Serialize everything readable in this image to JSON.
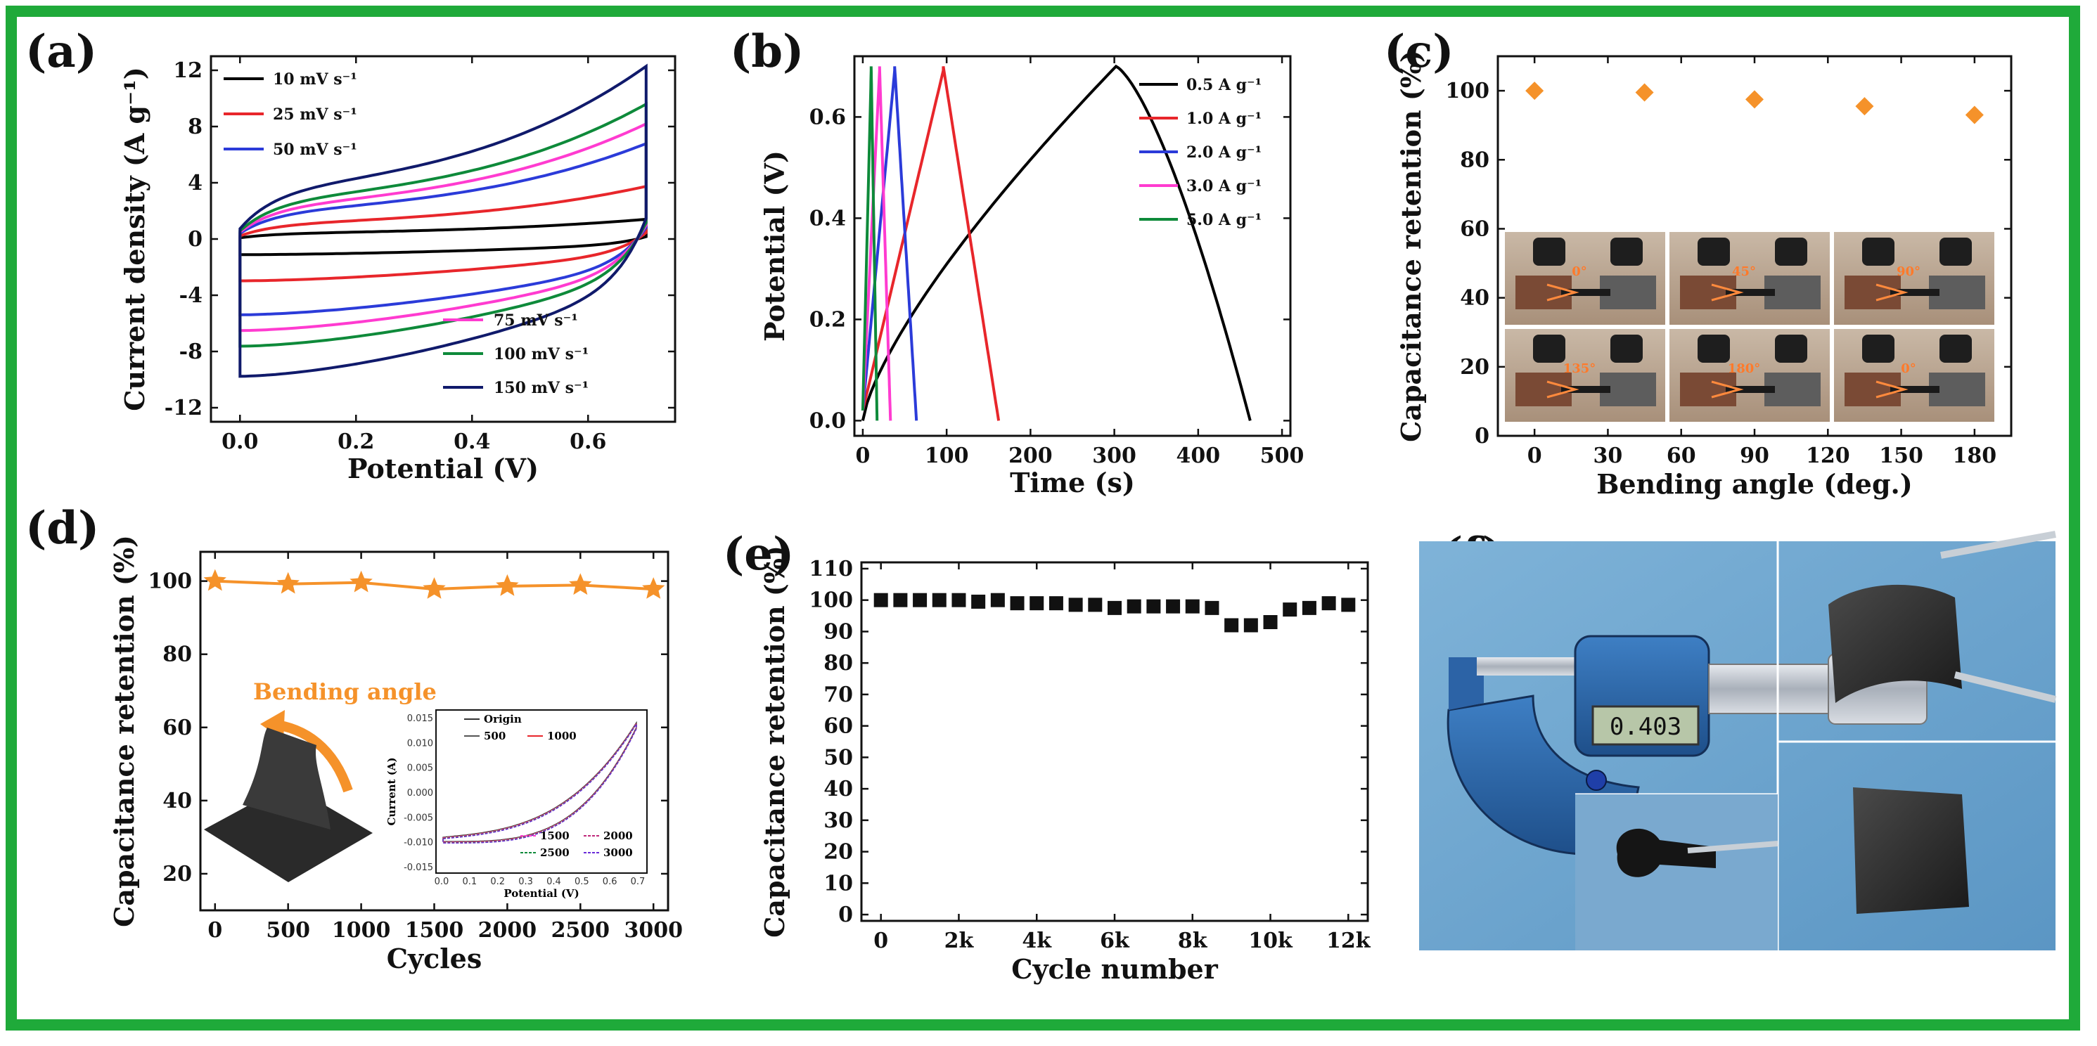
{
  "panels": {
    "a": "(a)",
    "b": "(b)",
    "c": "(c)",
    "d": "(d)",
    "e": "(e)",
    "f": "(f)"
  },
  "colors": {
    "frame": "#1faa3a",
    "orange": "#f5922a",
    "black": "#111111"
  },
  "chart_data": [
    {
      "id": "a",
      "type": "line",
      "xlabel": "Potential (V)",
      "ylabel": "Current density (A g⁻¹)",
      "xlim": [
        -0.05,
        0.75
      ],
      "ylim": [
        -13,
        13
      ],
      "xticks": [
        "0.0",
        "0.2",
        "0.4",
        "0.6"
      ],
      "xtick_values": [
        0,
        0.2,
        0.4,
        0.6
      ],
      "yticks": [
        "-12",
        "-8",
        "-4",
        "0",
        "4",
        "8",
        "12"
      ],
      "ytick_values": [
        -12,
        -8,
        -4,
        0,
        4,
        8,
        12
      ],
      "series": [
        {
          "name": "10 mV s⁻¹",
          "color": "#000000",
          "amp": 1.2,
          "legend": "upper"
        },
        {
          "name": "25 mV s⁻¹",
          "color": "#e8262b",
          "amp": 3.2,
          "legend": "upper"
        },
        {
          "name": "50 mV s⁻¹",
          "color": "#2b3bd9",
          "amp": 5.8,
          "legend": "upper"
        },
        {
          "name": "75 mV s⁻¹",
          "color": "#ff3bd0",
          "amp": 7.0,
          "legend": "lower"
        },
        {
          "name": "100 mV s⁻¹",
          "color": "#0e8a3a",
          "amp": 8.2,
          "legend": "lower"
        },
        {
          "name": "150 mV s⁻¹",
          "color": "#101a6b",
          "amp": 10.5,
          "legend": "lower"
        }
      ]
    },
    {
      "id": "b",
      "type": "line",
      "xlabel": "Time (s)",
      "ylabel": "Potential (V)",
      "xlim": [
        -10,
        510
      ],
      "ylim": [
        -0.03,
        0.72
      ],
      "xticks": [
        "0",
        "100",
        "200",
        "300",
        "400",
        "500"
      ],
      "xtick_values": [
        0,
        100,
        200,
        300,
        400,
        500
      ],
      "yticks": [
        "0.0",
        "0.2",
        "0.4",
        "0.6"
      ],
      "ytick_values": [
        0,
        0.2,
        0.4,
        0.6
      ],
      "series": [
        {
          "name": "0.5 A g⁻¹",
          "color": "#000000",
          "charge_end": 302,
          "discharge_end": 462
        },
        {
          "name": "1.0 A g⁻¹",
          "color": "#e8262b",
          "charge_end": 96,
          "discharge_end": 162
        },
        {
          "name": "2.0 A g⁻¹",
          "color": "#2b3bd9",
          "charge_end": 38,
          "discharge_end": 64
        },
        {
          "name": "3.0 A g⁻¹",
          "color": "#ff3bd0",
          "charge_end": 20,
          "discharge_end": 33
        },
        {
          "name": "5.0 A g⁻¹",
          "color": "#0e8a3a",
          "charge_end": 10,
          "discharge_end": 17
        }
      ]
    },
    {
      "id": "c",
      "type": "scatter",
      "xlabel": "Bending angle (deg.)",
      "ylabel": "Capacitance retention (%)",
      "xlim": [
        -15,
        195
      ],
      "ylim": [
        0,
        110
      ],
      "xticks": [
        "0",
        "30",
        "60",
        "90",
        "120",
        "150",
        "180"
      ],
      "xtick_values": [
        0,
        30,
        60,
        90,
        120,
        150,
        180
      ],
      "yticks": [
        "0",
        "20",
        "40",
        "60",
        "80",
        "100"
      ],
      "ytick_values": [
        0,
        20,
        40,
        60,
        80,
        100
      ],
      "x": [
        0,
        45,
        90,
        135,
        180
      ],
      "y": [
        100,
        99.5,
        97.5,
        95.5,
        93
      ],
      "inset_labels": [
        "0°",
        "45°",
        "90°",
        "135°",
        "180°",
        "0°"
      ]
    },
    {
      "id": "d",
      "type": "line",
      "xlabel": "Cycles",
      "ylabel": "Capacitance retention (%)",
      "xlim": [
        -100,
        3100
      ],
      "ylim": [
        10,
        108
      ],
      "xticks": [
        "0",
        "500",
        "1000",
        "1500",
        "2000",
        "2500",
        "3000"
      ],
      "xtick_values": [
        0,
        500,
        1000,
        1500,
        2000,
        2500,
        3000
      ],
      "yticks": [
        "20",
        "40",
        "60",
        "80",
        "100"
      ],
      "ytick_values": [
        20,
        40,
        60,
        80,
        100
      ],
      "x": [
        0,
        500,
        1000,
        1500,
        2000,
        2500,
        3000
      ],
      "y": [
        100,
        99.2,
        99.6,
        97.8,
        98.6,
        98.9,
        97.8
      ],
      "annotation": "Bending angle",
      "inset": {
        "xlabel": "Potential (V)",
        "ylabel": "Current (A)",
        "xticks": [
          "0.0",
          "0.1",
          "0.2",
          "0.3",
          "0.4",
          "0.5",
          "0.6",
          "0.7"
        ],
        "yticks": [
          "0.015",
          "0.010",
          "0.005",
          "0.000",
          "-0.005",
          "-0.010",
          "-0.015"
        ],
        "legend_top": [
          "Origin",
          "500",
          "1000"
        ],
        "legend_bottom": [
          "1500",
          "2000",
          "2500",
          "3000"
        ]
      }
    },
    {
      "id": "e",
      "type": "scatter",
      "xlabel": "Cycle number",
      "ylabel": "Capacitance retention (%)",
      "xlim": [
        -500,
        12500
      ],
      "ylim": [
        -2,
        112
      ],
      "xticks": [
        "0",
        "2k",
        "4k",
        "6k",
        "8k",
        "10k",
        "12k"
      ],
      "xtick_values": [
        0,
        2000,
        4000,
        6000,
        8000,
        10000,
        12000
      ],
      "yticks": [
        "0",
        "10",
        "20",
        "30",
        "40",
        "50",
        "60",
        "70",
        "80",
        "90",
        "100",
        "110"
      ],
      "ytick_values": [
        0,
        10,
        20,
        30,
        40,
        50,
        60,
        70,
        80,
        90,
        100,
        110
      ],
      "x": [
        0,
        500,
        1000,
        1500,
        2000,
        2500,
        3000,
        3500,
        4000,
        4500,
        5000,
        5500,
        6000,
        6500,
        7000,
        7500,
        8000,
        8500,
        9000,
        9500,
        10000,
        10500,
        11000,
        11500,
        12000
      ],
      "y": [
        100,
        100,
        100,
        100,
        100,
        99.5,
        100,
        99,
        99,
        99,
        98.5,
        98.5,
        97.5,
        98,
        98,
        98,
        98,
        97.5,
        92,
        92,
        93,
        97,
        97.5,
        99,
        98.5
      ]
    }
  ],
  "photo_f": {
    "display": "0.403"
  }
}
